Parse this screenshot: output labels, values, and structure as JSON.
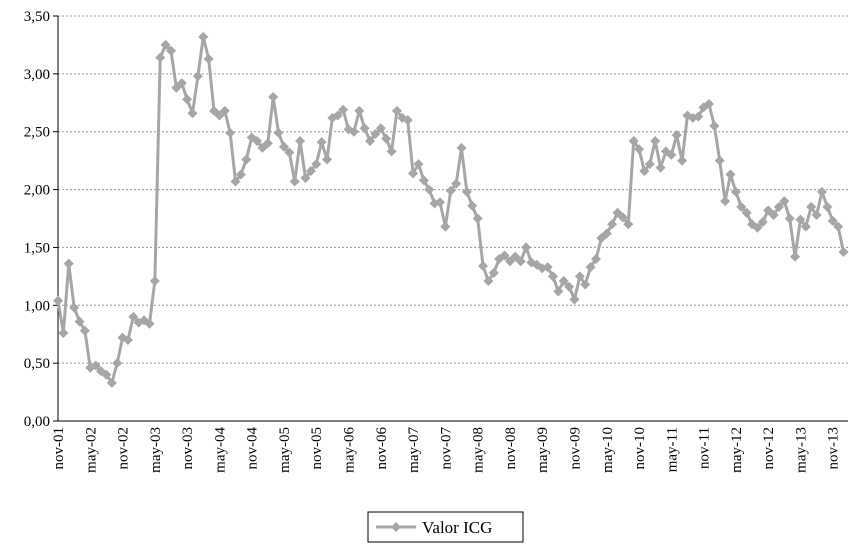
{
  "chart_data": {
    "type": "line",
    "categories": [
      "nov-01",
      null,
      null,
      null,
      null,
      null,
      "may-02",
      null,
      null,
      null,
      null,
      null,
      "nov-02",
      null,
      null,
      null,
      null,
      null,
      "may-03",
      null,
      null,
      null,
      null,
      null,
      "nov-03",
      null,
      null,
      null,
      null,
      null,
      "may-04",
      null,
      null,
      null,
      null,
      null,
      "nov-04",
      null,
      null,
      null,
      null,
      null,
      "may-05",
      null,
      null,
      null,
      null,
      null,
      "nov-05",
      null,
      null,
      null,
      null,
      null,
      "may-06",
      null,
      null,
      null,
      null,
      null,
      "nov-06",
      null,
      null,
      null,
      null,
      null,
      "may-07",
      null,
      null,
      null,
      null,
      null,
      "nov-07",
      null,
      null,
      null,
      null,
      null,
      "may-08",
      null,
      null,
      null,
      null,
      null,
      "nov-08",
      null,
      null,
      null,
      null,
      null,
      "may-09",
      null,
      null,
      null,
      null,
      null,
      "nov-09",
      null,
      null,
      null,
      null,
      null,
      "may-10",
      null,
      null,
      null,
      null,
      null,
      "nov-10",
      null,
      null,
      null,
      null,
      null,
      "may-11",
      null,
      null,
      null,
      null,
      null,
      "nov-11",
      null,
      null,
      null,
      null,
      null,
      "may-12",
      null,
      null,
      null,
      null,
      null,
      "nov-12",
      null,
      null,
      null,
      null,
      null,
      "may-13",
      null,
      null,
      null,
      null,
      null,
      "nov-13",
      null,
      null
    ],
    "series": [
      {
        "name": "Valor ICG",
        "color": "#a6a6a6",
        "values": [
          1.04,
          0.76,
          1.36,
          0.98,
          0.86,
          0.78,
          0.46,
          0.48,
          0.43,
          0.4,
          0.33,
          0.5,
          0.72,
          0.7,
          0.9,
          0.85,
          0.87,
          0.84,
          1.21,
          3.14,
          3.25,
          3.2,
          2.88,
          2.92,
          2.78,
          2.66,
          2.98,
          3.32,
          3.13,
          2.68,
          2.64,
          2.68,
          2.49,
          2.07,
          2.13,
          2.26,
          2.45,
          2.42,
          2.36,
          2.4,
          2.8,
          2.49,
          2.37,
          2.32,
          2.07,
          2.42,
          2.1,
          2.16,
          2.22,
          2.41,
          2.26,
          2.62,
          2.64,
          2.69,
          2.52,
          2.5,
          2.68,
          2.53,
          2.42,
          2.48,
          2.53,
          2.44,
          2.33,
          2.68,
          2.62,
          2.6,
          2.14,
          2.22,
          2.08,
          2.0,
          1.88,
          1.89,
          1.68,
          1.99,
          2.05,
          2.36,
          1.98,
          1.86,
          1.75,
          1.34,
          1.21,
          1.28,
          1.4,
          1.43,
          1.38,
          1.42,
          1.38,
          1.5,
          1.37,
          1.35,
          1.32,
          1.33,
          1.25,
          1.12,
          1.21,
          1.16,
          1.05,
          1.25,
          1.18,
          1.33,
          1.4,
          1.58,
          1.62,
          1.7,
          1.8,
          1.76,
          1.7,
          2.42,
          2.35,
          2.16,
          2.22,
          2.42,
          2.19,
          2.33,
          2.3,
          2.47,
          2.25,
          2.64,
          2.62,
          2.63,
          2.71,
          2.74,
          2.55,
          2.25,
          1.9,
          2.13,
          1.98,
          1.85,
          1.8,
          1.7,
          1.67,
          1.72,
          1.82,
          1.78,
          1.85,
          1.9,
          1.75,
          1.42,
          1.74,
          1.68,
          1.85,
          1.78,
          1.98,
          1.85,
          1.73,
          1.68,
          1.46
        ]
      }
    ],
    "ylim": [
      0,
      3.5
    ],
    "yticks": [
      {
        "value": 0,
        "label": "0,00"
      },
      {
        "value": 0.5,
        "label": "0,50"
      },
      {
        "value": 1,
        "label": "1,00"
      },
      {
        "value": 1.5,
        "label": "1,50"
      },
      {
        "value": 2,
        "label": "2,00"
      },
      {
        "value": 2.5,
        "label": "2,50"
      },
      {
        "value": 3,
        "label": "3,00"
      },
      {
        "value": 3.5,
        "label": "3,50"
      }
    ],
    "grid": true,
    "legend": "bottom"
  }
}
